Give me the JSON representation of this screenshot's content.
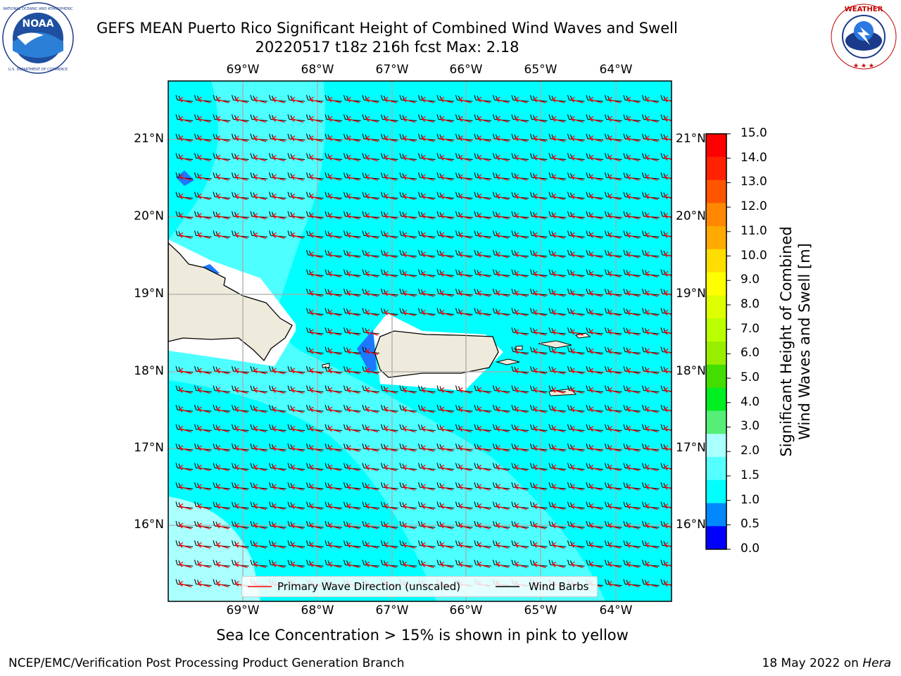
{
  "header": {
    "title_line1": "GEFS MEAN Puerto Rico Significant Height of Combined Wind Waves and Swell",
    "title_line2": "20220517 t18z 216h fcst   Max: 2.18"
  },
  "logos": {
    "left": {
      "name": "noaa-logo",
      "text": "NOAA",
      "ring_text": "NATIONAL OCEANIC AND ATMOSPHERIC ADMINISTRATION · U.S. DEPARTMENT OF COMMERCE"
    },
    "right": {
      "name": "nws-logo",
      "ring_text": "NATIONAL WEATHER SERVICE"
    }
  },
  "map": {
    "lon_labels": [
      "69°W",
      "68°W",
      "67°W",
      "66°W",
      "65°W",
      "64°W"
    ],
    "lat_labels": [
      "21°N",
      "20°N",
      "19°N",
      "18°N",
      "17°N",
      "16°N"
    ],
    "ocean_color": "#00ffff",
    "light_band_color": "#55ffff",
    "land_color": "#efebdc",
    "wave_arrow_color": "#ff0000",
    "barb_color": "#000000"
  },
  "legend": {
    "wave_direction": "Primary Wave Direction (unscaled)",
    "wind_barbs": "Wind Barbs"
  },
  "colorbar": {
    "label": "Significant Height of Combined Wind Waves and Swell [m]",
    "label_line1": "Significant Height of Combined",
    "label_line2": "Wind Waves and Swell [m]",
    "ticks": [
      "15.0",
      "14.0",
      "13.0",
      "12.0",
      "11.0",
      "10.0",
      "9.0",
      "8.0",
      "7.0",
      "6.0",
      "5.0",
      "4.0",
      "3.0",
      "2.0",
      "1.5",
      "1.0",
      "0.5",
      "0.0"
    ],
    "colors": [
      "#ff0000",
      "#ff2200",
      "#ff5500",
      "#ff8800",
      "#ffaa00",
      "#ffdd00",
      "#ffff00",
      "#ddff00",
      "#bbff00",
      "#99ee00",
      "#44dd00",
      "#00ee22",
      "#55ee77",
      "#aaffff",
      "#55ffff",
      "#00ffff",
      "#0088ff",
      "#0000ff"
    ]
  },
  "notes": {
    "sea_ice": "Sea Ice Concentration > 15% is shown in pink to yellow"
  },
  "footer": {
    "left": "NCEP/EMC/Verification Post Processing Product Generation Branch",
    "date": "18 May 2022 on ",
    "machine": "Hera"
  }
}
